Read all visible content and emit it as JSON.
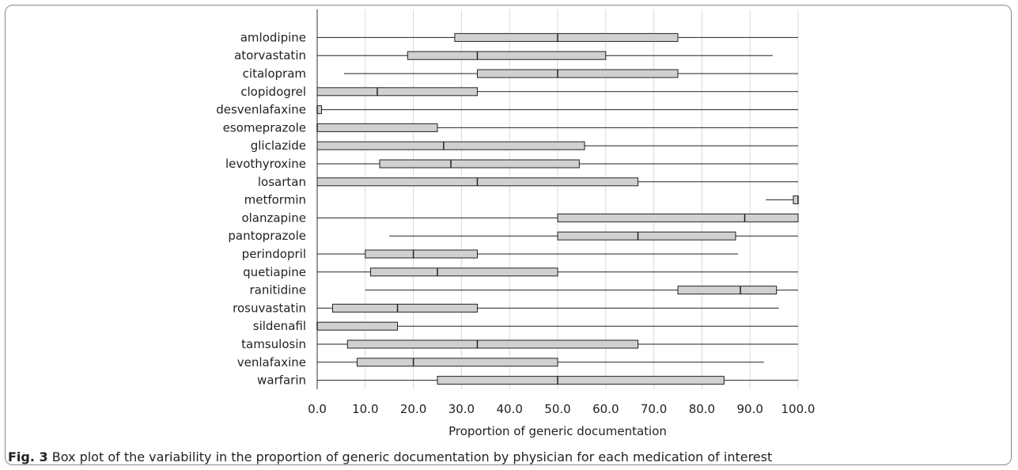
{
  "chart_data": {
    "type": "box",
    "orientation": "horizontal",
    "xlabel": "Proportion of generic documentation",
    "xlim": [
      0,
      100
    ],
    "xticks": [
      "0.0",
      "10.0",
      "20.0",
      "30.0",
      "40.0",
      "50.0",
      "60.0",
      "70.0",
      "80.0",
      "90.0",
      "100.0"
    ],
    "grid": true,
    "colors": {
      "box_fill": "#d0d0d0",
      "box_stroke": "#222222",
      "grid": "#d9d9d9"
    },
    "categories": [
      "amlodipine",
      "atorvastatin",
      "citalopram",
      "clopidogrel",
      "desvenlafaxine",
      "esomeprazole",
      "gliclazide",
      "levothyroxine",
      "losartan",
      "metformin",
      "olanzapine",
      "pantoprazole",
      "perindopril",
      "quetiapine",
      "ranitidine",
      "rosuvastatin",
      "sildenafil",
      "tamsulosin",
      "venlafaxine",
      "warfarin"
    ],
    "boxes": [
      {
        "label": "amlodipine",
        "min": 0,
        "q1": 28.6,
        "median": 50,
        "q3": 75,
        "max": 100
      },
      {
        "label": "atorvastatin",
        "min": 0,
        "q1": 18.8,
        "median": 33.3,
        "q3": 60,
        "max": 94.7
      },
      {
        "label": "citalopram",
        "min": 5.6,
        "q1": 33.3,
        "median": 50,
        "q3": 75,
        "max": 100
      },
      {
        "label": "clopidogrel",
        "min": 0,
        "q1": 0,
        "median": 12.5,
        "q3": 33.3,
        "max": 100
      },
      {
        "label": "desvenlafaxine",
        "min": 0,
        "q1": 0,
        "median": 0,
        "q3": 0.9,
        "max": 100
      },
      {
        "label": "esomeprazole",
        "min": 0,
        "q1": 0,
        "median": 0,
        "q3": 25,
        "max": 100
      },
      {
        "label": "gliclazide",
        "min": 0,
        "q1": 0,
        "median": 26.3,
        "q3": 55.6,
        "max": 100
      },
      {
        "label": "levothyroxine",
        "min": 0,
        "q1": 13,
        "median": 27.8,
        "q3": 54.5,
        "max": 100
      },
      {
        "label": "losartan",
        "min": 0,
        "q1": 0,
        "median": 33.3,
        "q3": 66.7,
        "max": 100
      },
      {
        "label": "metformin",
        "min": 93.3,
        "q1": 99,
        "median": 100,
        "q3": 100,
        "max": 100
      },
      {
        "label": "olanzapine",
        "min": 0,
        "q1": 50,
        "median": 88.9,
        "q3": 100,
        "max": 100
      },
      {
        "label": "pantoprazole",
        "min": 15,
        "q1": 50,
        "median": 66.7,
        "q3": 87,
        "max": 100
      },
      {
        "label": "perindopril",
        "min": 0,
        "q1": 10,
        "median": 20,
        "q3": 33.3,
        "max": 87.5
      },
      {
        "label": "quetiapine",
        "min": 0,
        "q1": 11.1,
        "median": 25,
        "q3": 50,
        "max": 100
      },
      {
        "label": "ranitidine",
        "min": 10,
        "q1": 75,
        "median": 88,
        "q3": 95.5,
        "max": 100
      },
      {
        "label": "rosuvastatin",
        "min": 0,
        "q1": 3.2,
        "median": 16.7,
        "q3": 33.3,
        "max": 96
      },
      {
        "label": "sildenafil",
        "min": 0,
        "q1": 0,
        "median": 0,
        "q3": 16.7,
        "max": 100
      },
      {
        "label": "tamsulosin",
        "min": 0,
        "q1": 6.3,
        "median": 33.3,
        "q3": 66.7,
        "max": 100
      },
      {
        "label": "venlafaxine",
        "min": 0,
        "q1": 8.3,
        "median": 20,
        "q3": 50,
        "max": 92.9
      },
      {
        "label": "warfarin",
        "min": 0,
        "q1": 25,
        "median": 50,
        "q3": 84.6,
        "max": 100
      }
    ]
  },
  "caption": {
    "label": "Fig. 3",
    "text": " Box plot of the variability in the proportion of generic documentation by physician for each medication of interest"
  }
}
